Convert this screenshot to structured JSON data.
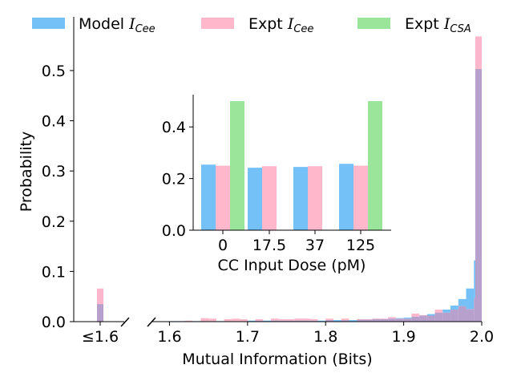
{
  "colors": {
    "model_cee": "#74c1f7",
    "expt_cee": "#ffb8cb",
    "expt_csa": "#9ae59a",
    "overlap": "#b7a0cc",
    "axis": "#000000"
  },
  "legend": {
    "placement": "top",
    "items": [
      {
        "key": "model_cee",
        "label_main": "Model ",
        "label_sym": "I",
        "label_sub": "Cee",
        "swatch": "model_cee"
      },
      {
        "key": "expt_cee",
        "label_main": "Expt ",
        "label_sym": "I",
        "label_sub": "Cee",
        "swatch": "expt_cee"
      },
      {
        "key": "expt_csa",
        "label_main": "Expt ",
        "label_sym": "I",
        "label_sub": "CSA",
        "swatch": "expt_csa"
      }
    ]
  },
  "chart_data": [
    {
      "id": "main",
      "type": "bar",
      "xlabel": "Mutual Information (Bits)",
      "ylabel": "Probability",
      "ylim": [
        0,
        0.575
      ],
      "yticks": [
        "0.0",
        "0.1",
        "0.2",
        "0.3",
        "0.4",
        "0.5"
      ],
      "ytick_values": [
        0,
        0.1,
        0.2,
        0.3,
        0.4,
        0.5
      ],
      "broken_axis": true,
      "left_segment": {
        "tick_label": "≤1.6",
        "values": {
          "model_cee": 0.035,
          "expt_cee": 0.066
        }
      },
      "right_segment": {
        "xlim": [
          1.578,
          2.0
        ],
        "xticks": [
          "1.6",
          "1.7",
          "1.8",
          "1.9",
          "2.0"
        ],
        "xtick_values": [
          1.6,
          1.7,
          1.8,
          1.9,
          2.0
        ],
        "bin_width": 0.01,
        "bin_starts": [
          1.6,
          1.61,
          1.62,
          1.63,
          1.64,
          1.65,
          1.66,
          1.67,
          1.68,
          1.69,
          1.7,
          1.71,
          1.72,
          1.73,
          1.74,
          1.75,
          1.76,
          1.77,
          1.78,
          1.79,
          1.8,
          1.81,
          1.82,
          1.83,
          1.84,
          1.85,
          1.86,
          1.87,
          1.88,
          1.89,
          1.9,
          1.91,
          1.92,
          1.93,
          1.94,
          1.95,
          1.96,
          1.97,
          1.98,
          1.99
        ],
        "series": [
          {
            "key": "model_cee",
            "values": [
              0.001,
              0.001,
              0.001,
              0.001,
              0.001,
              0.001,
              0.001,
              0.001,
              0.001,
              0.001,
              0.002,
              0.002,
              0.002,
              0.002,
              0.002,
              0.002,
              0.002,
              0.002,
              0.002,
              0.002,
              0.003,
              0.003,
              0.003,
              0.003,
              0.004,
              0.004,
              0.005,
              0.005,
              0.006,
              0.007,
              0.008,
              0.01,
              0.012,
              0.015,
              0.018,
              0.024,
              0.032,
              0.045,
              0.066,
              0.122
            ]
          },
          {
            "key": "expt_cee",
            "values": [
              0,
              0,
              0.002,
              0,
              0.007,
              0.006,
              0,
              0.005,
              0.006,
              0.005,
              0,
              0.005,
              0,
              0.006,
              0.005,
              0.005,
              0.006,
              0.006,
              0.005,
              0,
              0.006,
              0,
              0.006,
              0,
              0.005,
              0.005,
              0.006,
              0.006,
              0.009,
              0.006,
              0.006,
              0.016,
              0.013,
              0.012,
              0.024,
              0.018,
              0.024,
              0.031,
              0.025,
              0.047
            ]
          }
        ],
        "last_bin": {
          "model_cee": 0.503,
          "expt_cee": 0.568
        }
      }
    },
    {
      "id": "inset",
      "type": "bar",
      "xlabel": "CC Input Dose (pM)",
      "ylabel": "",
      "categories": [
        "0",
        "17.5",
        "37",
        "125"
      ],
      "ylim": [
        0,
        0.525
      ],
      "yticks": [
        "0.0",
        "0.2",
        "0.4"
      ],
      "ytick_values": [
        0,
        0.2,
        0.4
      ],
      "series": [
        {
          "key": "model_cee",
          "values": [
            0.254,
            0.242,
            0.245,
            0.257
          ]
        },
        {
          "key": "expt_cee",
          "values": [
            0.25,
            0.248,
            0.248,
            0.25
          ]
        },
        {
          "key": "expt_csa",
          "values": [
            0.5,
            0,
            0,
            0.5
          ]
        }
      ]
    }
  ]
}
